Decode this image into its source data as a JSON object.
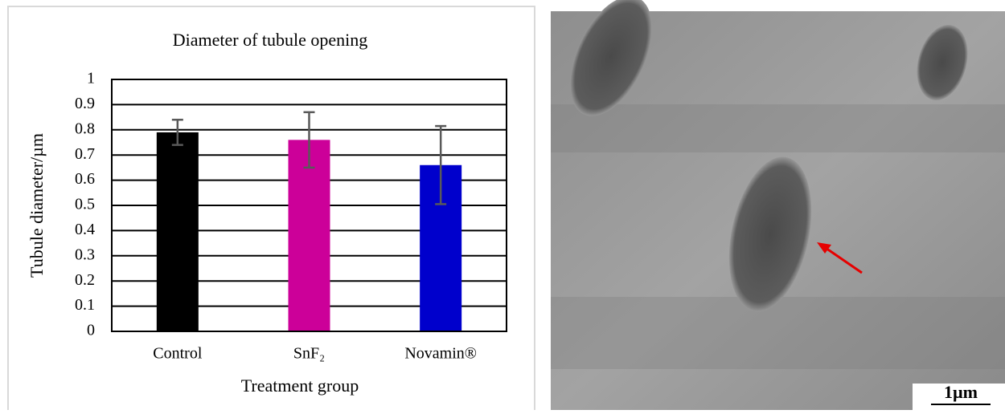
{
  "chart_data": {
    "type": "bar",
    "title": "Diameter of tubule opening",
    "x_label": "Treatment group",
    "y_label": "Tubule diameter/µm",
    "categories": [
      "Control",
      "SnF₂",
      "Novamin®"
    ],
    "values": [
      0.79,
      0.76,
      0.66
    ],
    "errors": [
      0.05,
      0.11,
      0.155
    ],
    "colors": [
      "#000000",
      "#cc0099",
      "#0000cc"
    ],
    "ylim": [
      0,
      1
    ],
    "yticks": [
      0,
      0.1,
      0.2,
      0.3,
      0.4,
      0.5,
      0.6,
      0.7,
      0.8,
      0.9,
      1
    ],
    "grid": true
  },
  "image": {
    "scale_bar": "1µm"
  }
}
